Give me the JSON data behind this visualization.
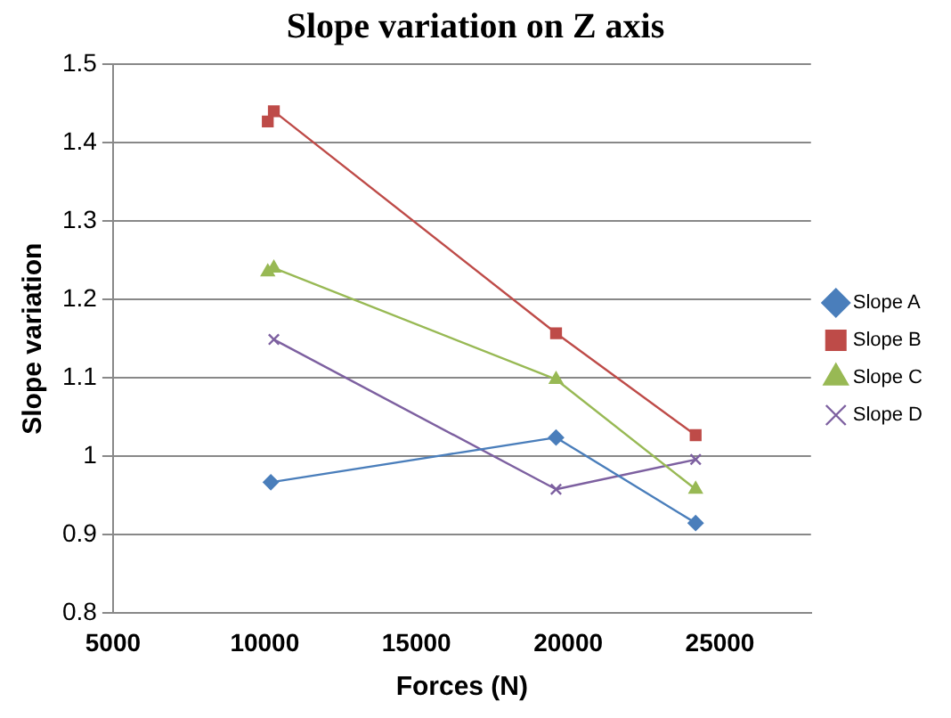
{
  "chart_data": {
    "type": "line",
    "title": "Slope variation on Z axis",
    "xlabel": "Forces (N)",
    "ylabel": "Slope variation",
    "xlim": [
      5000,
      28000
    ],
    "xticks": [
      5000,
      10000,
      15000,
      20000,
      25000
    ],
    "ylim": [
      0.8,
      1.5
    ],
    "yticks": [
      0.8,
      0.9,
      1,
      1.1,
      1.2,
      1.3,
      1.4,
      1.5
    ],
    "grid": "y",
    "legend": "right",
    "line_style": "solid",
    "series": [
      {
        "name": "Slope A",
        "color": "#4a7ebb",
        "marker": "diamond",
        "x": [
          10200,
          19600,
          24200
        ],
        "values": [
          0.967,
          1.024,
          0.915
        ]
      },
      {
        "name": "Slope B",
        "color": "#be4b48",
        "marker": "square",
        "x": [
          10100,
          10300,
          19600,
          24200
        ],
        "values": [
          1.427,
          1.44,
          1.157,
          1.027
        ]
      },
      {
        "name": "Slope C",
        "color": "#98b954",
        "marker": "triangle",
        "x": [
          10100,
          10300,
          19600,
          24200
        ],
        "values": [
          1.235,
          1.24,
          1.098,
          0.958
        ]
      },
      {
        "name": "Slope D",
        "color": "#7d60a0",
        "marker": "cross",
        "x": [
          10300,
          19600,
          24200
        ],
        "values": [
          1.149,
          0.958,
          0.996
        ]
      }
    ]
  }
}
